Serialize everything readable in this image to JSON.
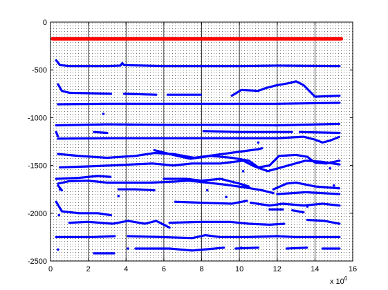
{
  "chart_data": {
    "type": "scatter",
    "title": "",
    "xlabel": "",
    "ylabel": "",
    "x_multiplier_label": {
      "base": "x 10",
      "exponent": "6"
    },
    "xlim": [
      0,
      16
    ],
    "ylim": [
      -2500,
      0
    ],
    "x_ticks": [
      0,
      2,
      4,
      6,
      8,
      10,
      12,
      14,
      16
    ],
    "y_ticks": [
      0,
      -500,
      -1000,
      -1500,
      -2000,
      -2500
    ],
    "x_tick_labels": [
      "0",
      "2",
      "4",
      "6",
      "8",
      "10",
      "12",
      "14",
      "16"
    ],
    "y_tick_labels": [
      "0",
      "-500",
      "-1000",
      "-1500",
      "-2000",
      "-2500"
    ],
    "grid": "vertical lines at major x ticks, dotted background",
    "colors": {
      "reference": "#ff0000",
      "tracks": "#0000ff",
      "grid_dot": "#000000"
    },
    "series": [
      {
        "color": "#ff0000",
        "segments": [
          [
            [
              0.1,
              -175
            ],
            [
              15.4,
              -175
            ]
          ]
        ]
      },
      {
        "color": "#0000ff",
        "segments": [
          [
            [
              0.3,
              -400
            ],
            [
              0.5,
              -450
            ],
            [
              1,
              -460
            ],
            [
              3,
              -460
            ],
            [
              3.7,
              -455
            ],
            [
              3.8,
              -430
            ],
            [
              3.9,
              -450
            ],
            [
              6,
              -460
            ],
            [
              10,
              -460
            ],
            [
              12,
              -455
            ],
            [
              15.3,
              -460
            ]
          ],
          [
            [
              0.4,
              -650
            ],
            [
              0.6,
              -720
            ],
            [
              1,
              -740
            ],
            [
              2.2,
              -745
            ],
            [
              3.2,
              -750
            ]
          ],
          [
            [
              3.9,
              -750
            ],
            [
              5.6,
              -760
            ]
          ],
          [
            [
              6.2,
              -760
            ],
            [
              8.0,
              -760
            ]
          ],
          [
            [
              9.6,
              -770
            ],
            [
              10.1,
              -710
            ],
            [
              11,
              -720
            ],
            [
              11.4,
              -690
            ],
            [
              12,
              -660
            ],
            [
              12.6,
              -640
            ],
            [
              13,
              -620
            ],
            [
              13.4,
              -660
            ],
            [
              14,
              -780
            ],
            [
              15.3,
              -770
            ]
          ],
          [
            [
              0.4,
              -860
            ],
            [
              3,
              -855
            ],
            [
              6,
              -855
            ],
            [
              9,
              -855
            ],
            [
              12,
              -855
            ],
            [
              15.3,
              -845
            ]
          ],
          [
            [
              0.3,
              -1080
            ],
            [
              3,
              -1070
            ],
            [
              6,
              -1075
            ],
            [
              9,
              -1075
            ],
            [
              12,
              -1080
            ],
            [
              15.3,
              -1065
            ]
          ],
          [
            [
              0.3,
              -1150
            ],
            [
              0.4,
              -1200
            ]
          ],
          [
            [
              2.3,
              -1150
            ],
            [
              3.0,
              -1160
            ]
          ],
          [
            [
              8.1,
              -1140
            ],
            [
              10,
              -1150
            ],
            [
              12.8,
              -1150
            ]
          ],
          [
            [
              13.2,
              -1150
            ],
            [
              15.3,
              -1160
            ]
          ],
          [
            [
              0.4,
              -1220
            ],
            [
              3,
              -1215
            ],
            [
              6,
              -1215
            ],
            [
              9,
              -1215
            ],
            [
              12,
              -1215
            ],
            [
              13.4,
              -1200
            ],
            [
              14,
              -1230
            ],
            [
              14.4,
              -1260
            ],
            [
              14.8,
              -1240
            ],
            [
              15.3,
              -1200
            ]
          ],
          [
            [
              0.4,
              -1380
            ],
            [
              1.5,
              -1400
            ],
            [
              3,
              -1420
            ],
            [
              4.5,
              -1400
            ],
            [
              5.5,
              -1370
            ],
            [
              6.5,
              -1380
            ],
            [
              7.6,
              -1420
            ],
            [
              8,
              -1410
            ],
            [
              9.5,
              -1370
            ],
            [
              11,
              -1330
            ],
            [
              11.2,
              -1320
            ]
          ],
          [
            [
              5.5,
              -1340
            ],
            [
              6.5,
              -1390
            ],
            [
              7.4,
              -1430
            ],
            [
              8.5,
              -1400
            ],
            [
              9.6,
              -1420
            ],
            [
              10.5,
              -1450
            ],
            [
              11,
              -1520
            ],
            [
              11.6,
              -1500
            ],
            [
              12.1,
              -1400
            ],
            [
              13,
              -1390
            ],
            [
              13.6,
              -1410
            ],
            [
              14,
              -1470
            ],
            [
              14.6,
              -1480
            ],
            [
              15.3,
              -1450
            ]
          ],
          [
            [
              0.5,
              -1520
            ],
            [
              2,
              -1510
            ],
            [
              3.2,
              -1500
            ],
            [
              5.4,
              -1480
            ],
            [
              6.5,
              -1500
            ],
            [
              7.5,
              -1480
            ],
            [
              9,
              -1480
            ],
            [
              10.2,
              -1450
            ],
            [
              10.8,
              -1510
            ],
            [
              11.5,
              -1560
            ],
            [
              12.4,
              -1510
            ],
            [
              13.5,
              -1450
            ],
            [
              14.3,
              -1460
            ],
            [
              15.3,
              -1490
            ]
          ],
          [
            [
              0.3,
              -1640
            ],
            [
              1.5,
              -1630
            ],
            [
              2.5,
              -1610
            ],
            [
              3.2,
              -1620
            ]
          ],
          [
            [
              0.4,
              -1690
            ],
            [
              1,
              -1665
            ],
            [
              2,
              -1660
            ],
            [
              3,
              -1680
            ],
            [
              5.3,
              -1680
            ],
            [
              6.5,
              -1670
            ],
            [
              7.3,
              -1660
            ],
            [
              8.3,
              -1680
            ],
            [
              9.2,
              -1700
            ],
            [
              10.3,
              -1730
            ],
            [
              11.2,
              -1760
            ],
            [
              11.8,
              -1790
            ]
          ],
          [
            [
              3.6,
              -1750
            ],
            [
              4.5,
              -1750
            ],
            [
              5.5,
              -1760
            ]
          ],
          [
            [
              6.0,
              -1640
            ],
            [
              7.2,
              -1640
            ],
            [
              8.0,
              -1660
            ],
            [
              9.0,
              -1640
            ],
            [
              10,
              -1690
            ],
            [
              10.5,
              -1720
            ]
          ],
          [
            [
              11.8,
              -1750
            ],
            [
              12.5,
              -1690
            ],
            [
              13,
              -1680
            ],
            [
              14,
              -1720
            ],
            [
              15.3,
              -1740
            ]
          ],
          [
            [
              12.0,
              -1800
            ],
            [
              13.5,
              -1780
            ],
            [
              14.4,
              -1790
            ],
            [
              15.3,
              -1800
            ]
          ],
          [
            [
              0.3,
              -1880
            ],
            [
              0.6,
              -1980
            ],
            [
              1.5,
              -2000
            ],
            [
              2.5,
              -2000
            ],
            [
              3.2,
              -2020
            ]
          ],
          [
            [
              0.4,
              -1710
            ],
            [
              0.6,
              -1760
            ]
          ],
          [
            [
              6.6,
              -1880
            ],
            [
              8.0,
              -1890
            ],
            [
              9.6,
              -1900
            ],
            [
              10.4,
              -1870
            ]
          ],
          [
            [
              10.6,
              -1890
            ],
            [
              11.6,
              -1920
            ],
            [
              12.3,
              -1900
            ],
            [
              13.4,
              -1920
            ],
            [
              14.4,
              -1900
            ],
            [
              15.3,
              -1920
            ]
          ],
          [
            [
              11.6,
              -1960
            ],
            [
              12.3,
              -1960
            ]
          ],
          [
            [
              12.8,
              -1970
            ],
            [
              13.4,
              -1990
            ]
          ],
          [
            [
              1.0,
              -2100
            ],
            [
              2,
              -2090
            ],
            [
              3.3,
              -2110
            ],
            [
              4.1,
              -2080
            ],
            [
              5,
              -2110
            ],
            [
              5.6,
              -2080
            ],
            [
              6.3,
              -2150
            ]
          ],
          [
            [
              6.3,
              -2100
            ],
            [
              8,
              -2090
            ],
            [
              9.5,
              -2090
            ],
            [
              10.5,
              -2110
            ],
            [
              11.6,
              -2120
            ],
            [
              12.4,
              -2110
            ]
          ],
          [
            [
              13.6,
              -2070
            ],
            [
              14.5,
              -2080
            ],
            [
              15.3,
              -2110
            ]
          ],
          [
            [
              0.3,
              -2250
            ],
            [
              2.2,
              -2250
            ],
            [
              3.4,
              -2240
            ]
          ],
          [
            [
              4.1,
              -2240
            ],
            [
              6,
              -2250
            ],
            [
              7.5,
              -2260
            ],
            [
              8.2,
              -2230
            ],
            [
              9,
              -2250
            ],
            [
              10.4,
              -2250
            ],
            [
              12,
              -2240
            ],
            [
              13,
              -2250
            ],
            [
              15.3,
              -2250
            ]
          ],
          [
            [
              2.3,
              -2420
            ],
            [
              3.4,
              -2420
            ]
          ],
          [
            [
              4.5,
              -2370
            ],
            [
              6.3,
              -2370
            ],
            [
              7.5,
              -2390
            ],
            [
              8.7,
              -2370
            ],
            [
              9.2,
              -2360
            ]
          ],
          [
            [
              9.8,
              -2370
            ],
            [
              11,
              -2360
            ]
          ],
          [
            [
              12.5,
              -2370
            ],
            [
              13.6,
              -2360
            ]
          ],
          [
            [
              14.4,
              -2370
            ],
            [
              15.3,
              -2370
            ]
          ]
        ]
      }
    ],
    "stray_points": [
      [
        0.4,
        -2380
      ],
      [
        0.45,
        -2020
      ],
      [
        4.1,
        -2370
      ],
      [
        10.1,
        -2360
      ],
      [
        8.3,
        -1760
      ],
      [
        9.3,
        -1830
      ],
      [
        10.2,
        -1560
      ],
      [
        11.0,
        -1260
      ],
      [
        3.6,
        -1820
      ],
      [
        14.8,
        -1530
      ],
      [
        13.6,
        -1930
      ],
      [
        0.5,
        -1750
      ],
      [
        2.8,
        -960
      ],
      [
        15.0,
        -1710
      ]
    ]
  }
}
